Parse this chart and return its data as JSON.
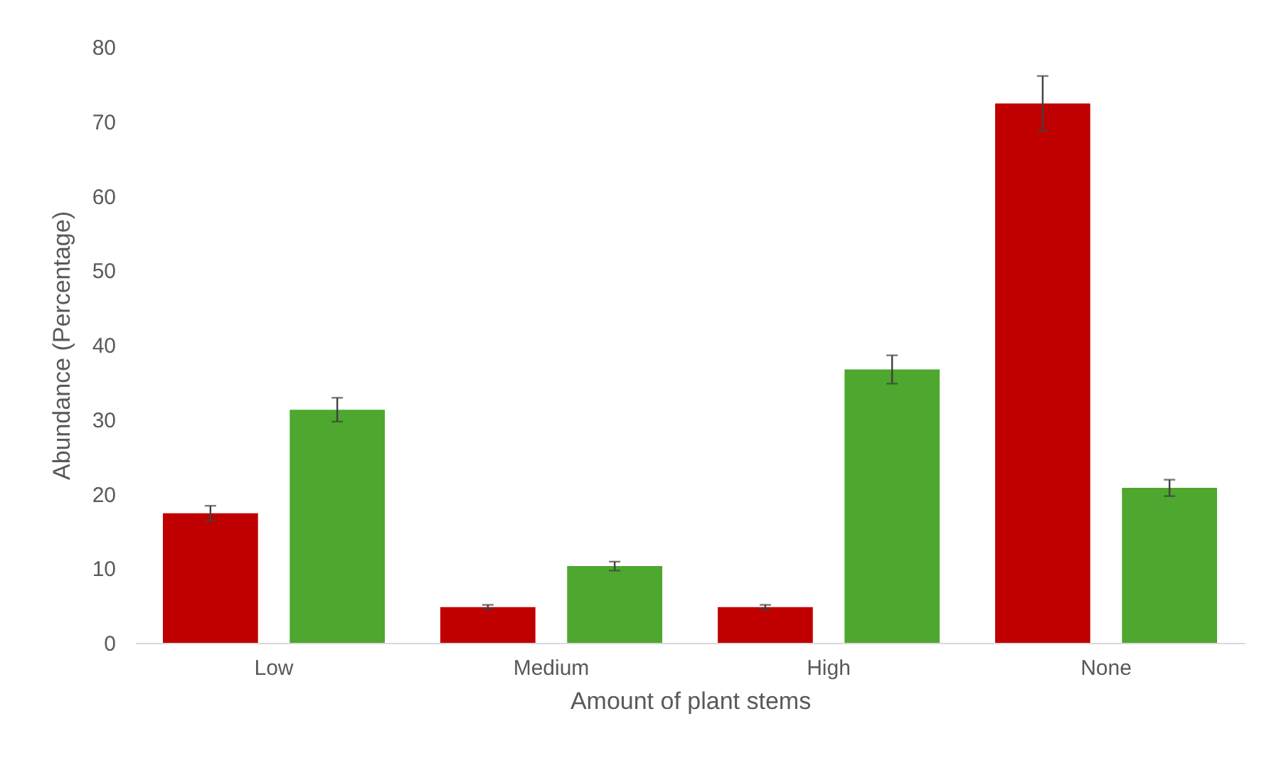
{
  "chart_data": {
    "type": "bar",
    "xlabel": "Amount of plant stems",
    "ylabel": "Abundance (Percentage)",
    "categories": [
      "Low",
      "Medium",
      "High",
      "None"
    ],
    "series": [
      {
        "color": "#c00000",
        "values": [
          17.4,
          4.8,
          4.8,
          72.4
        ],
        "errors": [
          1.0,
          0.3,
          0.3,
          3.7
        ]
      },
      {
        "color": "#4ea72e",
        "values": [
          31.3,
          10.3,
          36.7,
          20.8
        ],
        "errors": [
          1.6,
          0.6,
          1.9,
          1.1
        ]
      }
    ],
    "ylim": [
      0,
      80
    ],
    "yticks": [
      0,
      10,
      20,
      30,
      40,
      50,
      60,
      70,
      80
    ],
    "grid": false
  }
}
